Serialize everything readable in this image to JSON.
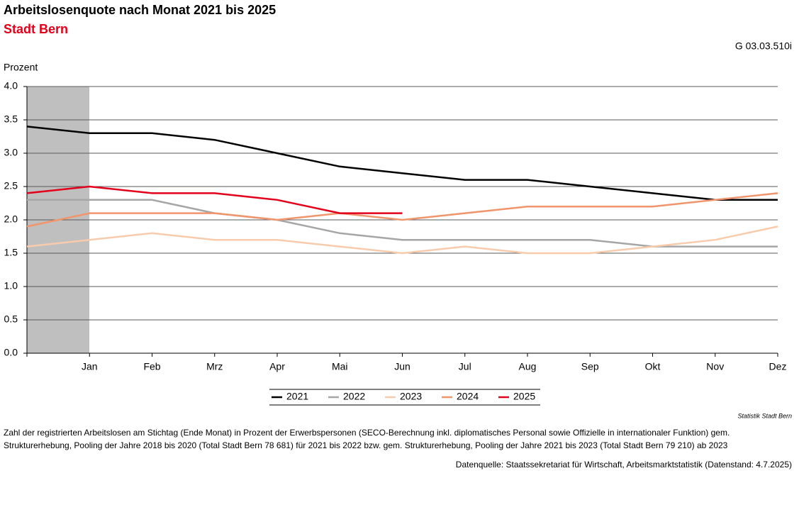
{
  "chart_data": {
    "type": "line",
    "title": "Arbeitslosenquote nach Monat 2021 bis 2025",
    "subtitle": "Stadt Bern",
    "code": "G 03.03.510i",
    "y_label": "Prozent",
    "credit": "Statistik Stadt Bern",
    "notes": [
      "Zahl der registrierten Arbeitslosen am Stichtag (Ende Monat) in Prozent der Erwerbspersonen (SECO-Berechnung inkl. diplomatisches Personal sowie Offizielle in internationaler Funktion) gem.",
      "Strukturerhebung, Pooling der Jahre 2018 bis 2020 (Total Stadt Bern 78 681) für 2021 bis 2022 bzw. gem. Strukturerhebung, Pooling der Jahre 2021 bis 2023 (Total Stadt Bern 79 210) ab 2023"
    ],
    "source": "Datenquelle: Staatssekretariat für Wirtschaft, Arbeitsmarktstatistik (Datenstand: 4.7.2025)",
    "categories": [
      null,
      "Jan",
      "Feb",
      "Mrz",
      "Apr",
      "Mai",
      "Jun",
      "Jul",
      "Aug",
      "Sep",
      "Okt",
      "Nov",
      "Dez"
    ],
    "series": [
      {
        "name": "2021",
        "color": "#000000",
        "values": [
          3.4,
          3.3,
          3.3,
          3.2,
          3.0,
          2.8,
          2.7,
          2.6,
          2.6,
          2.5,
          2.4,
          2.3,
          2.3
        ]
      },
      {
        "name": "2022",
        "color": "#a6a6a6",
        "values": [
          2.3,
          2.3,
          2.3,
          2.1,
          2.0,
          1.8,
          1.7,
          1.7,
          1.7,
          1.7,
          1.6,
          1.6,
          1.6
        ]
      },
      {
        "name": "2023",
        "color": "#f8cbad",
        "values": [
          1.6,
          1.7,
          1.8,
          1.7,
          1.7,
          1.6,
          1.5,
          1.6,
          1.5,
          1.5,
          1.6,
          1.7,
          1.9
        ]
      },
      {
        "name": "2024",
        "color": "#f0956c",
        "values": [
          1.9,
          2.1,
          2.1,
          2.1,
          2.0,
          2.1,
          2.0,
          2.1,
          2.2,
          2.2,
          2.2,
          2.3,
          2.4
        ]
      },
      {
        "name": "2025",
        "color": "#e2001a",
        "values": [
          2.4,
          2.5,
          2.4,
          2.4,
          2.3,
          2.1,
          2.1,
          null,
          null,
          null,
          null,
          null,
          null
        ]
      }
    ],
    "ylim": [
      0,
      4
    ],
    "yticks": [
      {
        "value": 0,
        "label": "0.0"
      },
      {
        "value": 0.5,
        "label": "0.5"
      },
      {
        "value": 1,
        "label": "1.0"
      },
      {
        "value": 1.5,
        "label": "1.5"
      },
      {
        "value": 2,
        "label": "2.0"
      },
      {
        "value": 2.5,
        "label": "2.5"
      },
      {
        "value": 3,
        "label": "3.0"
      },
      {
        "value": 3.5,
        "label": "3.5"
      },
      {
        "value": 4,
        "label": "4.0"
      }
    ],
    "grid": true
  }
}
